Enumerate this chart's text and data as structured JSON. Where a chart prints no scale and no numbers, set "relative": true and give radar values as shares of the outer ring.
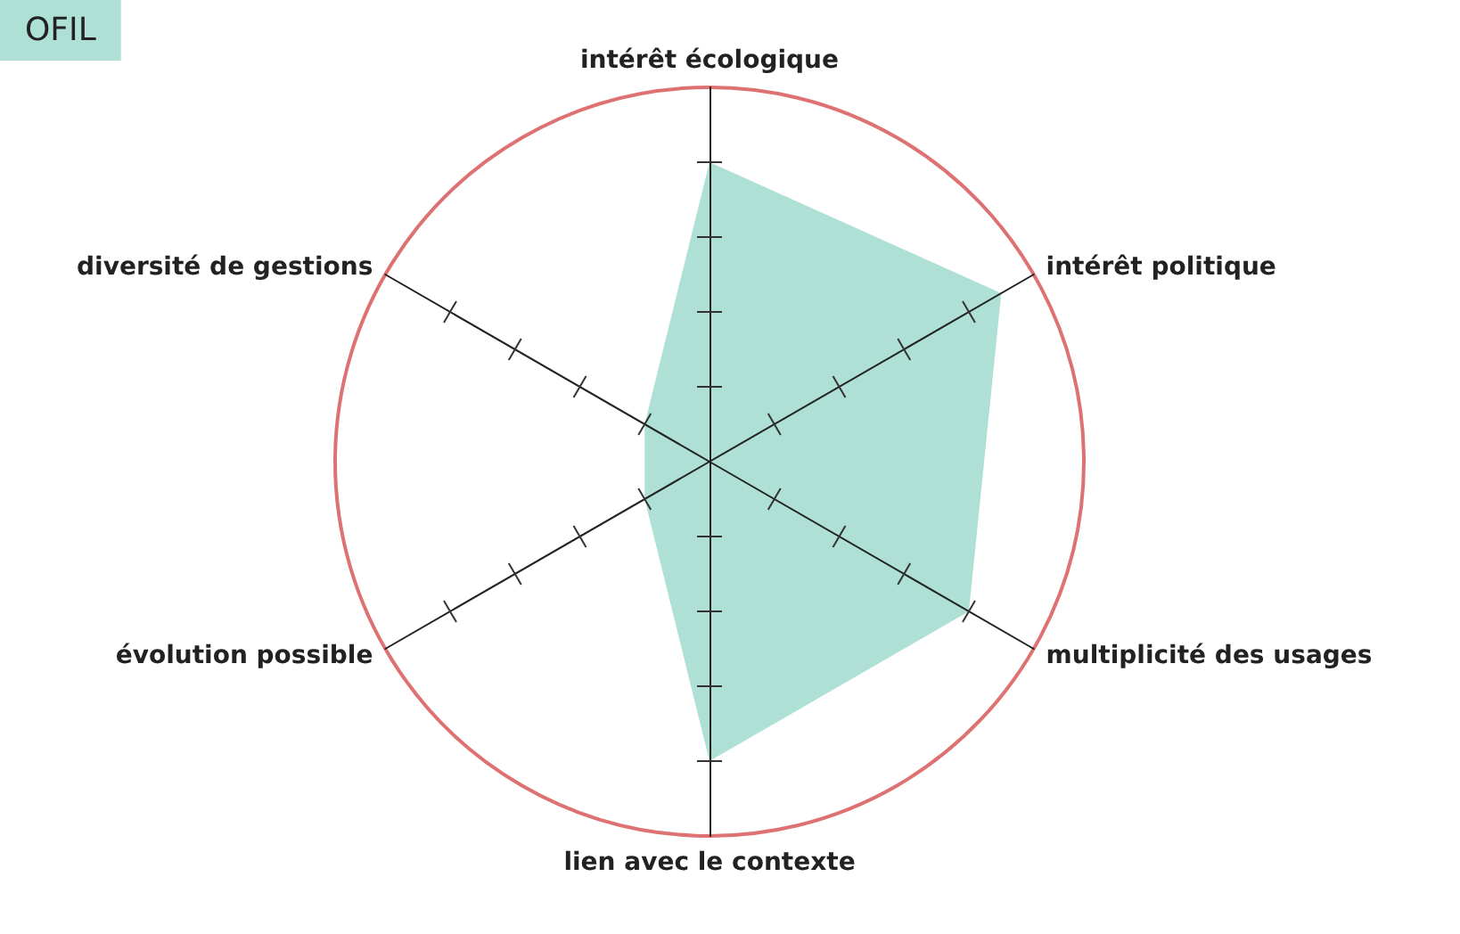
{
  "chart_data": {
    "type": "radar",
    "title": "OFIL",
    "relative": true,
    "categories": [
      "intérêt écologique",
      "intérêt politique",
      "multiplicité des usages",
      "lien avec le contexte",
      "évolution possible",
      "diversité de gestions"
    ],
    "series": [
      {
        "color": "#aee0d5",
        "values": [
          0.8,
          0.9,
          0.8,
          0.8,
          0.2,
          0.2
        ]
      }
    ]
  }
}
